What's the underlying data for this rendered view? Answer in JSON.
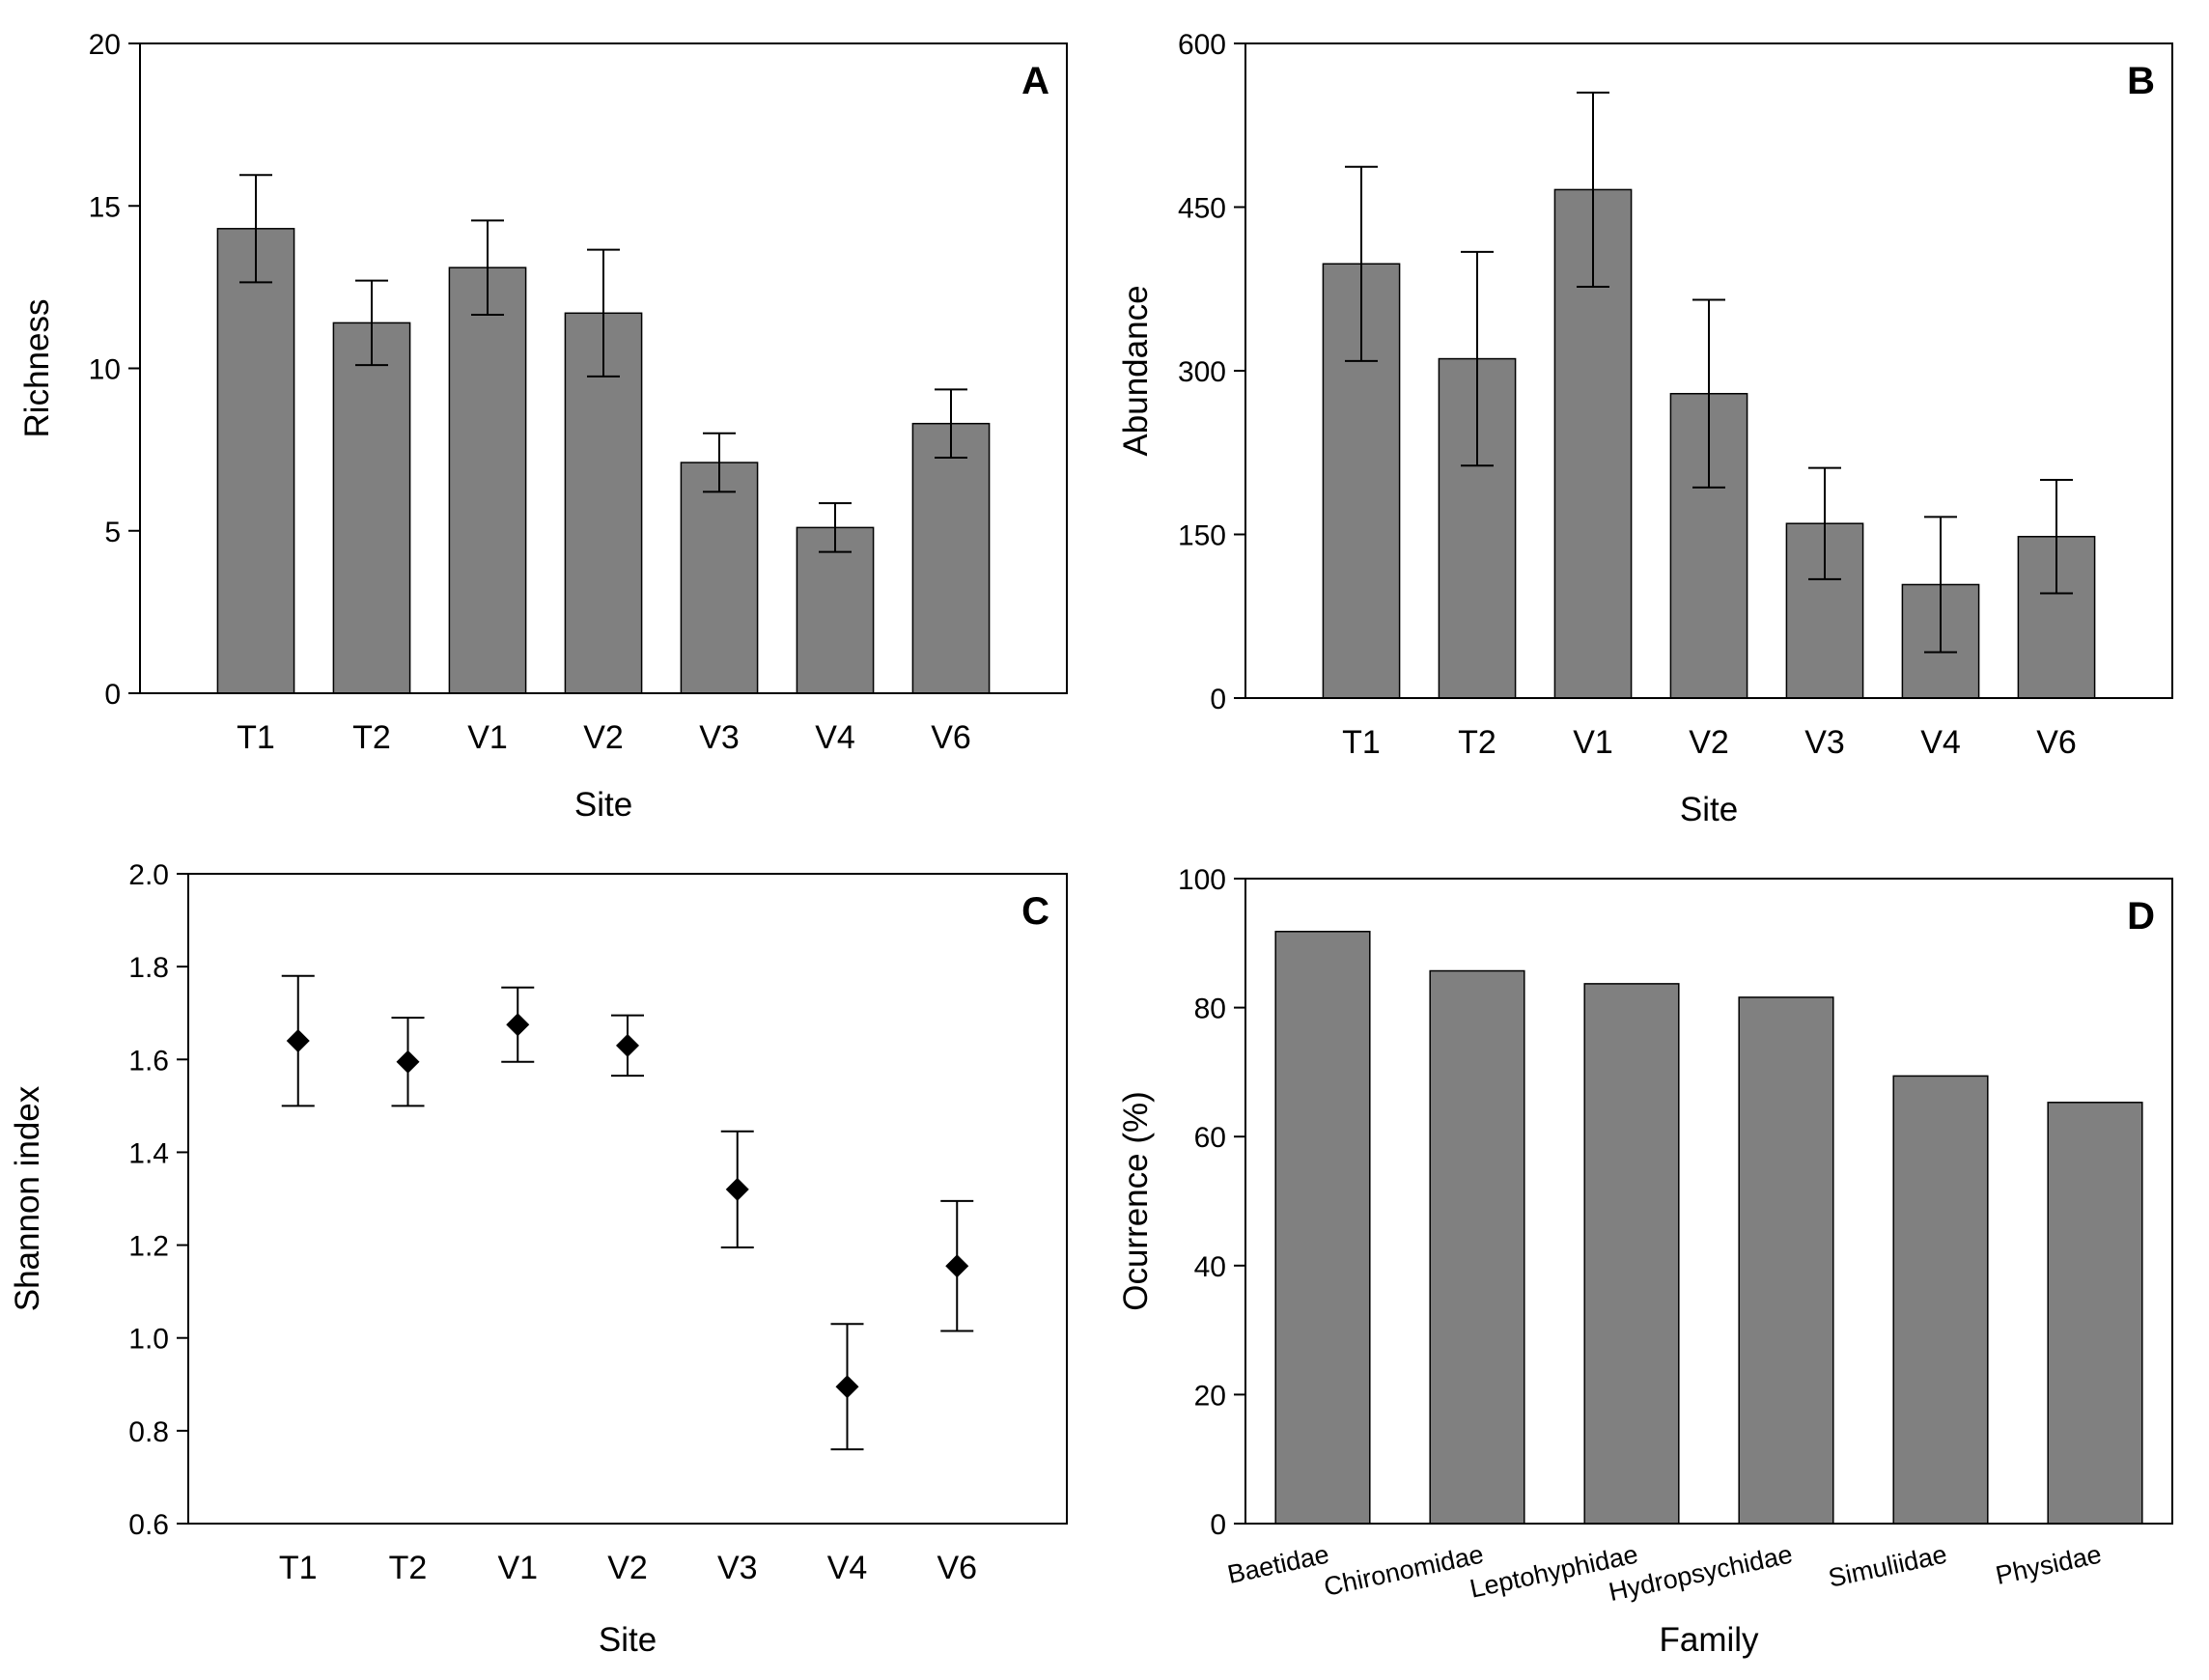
{
  "colors": {
    "bar_fill": "#808080",
    "bar_stroke": "#000000",
    "axis": "#000000",
    "marker": "#000000"
  },
  "chart_data": [
    {
      "panel": "A",
      "type": "bar",
      "categories": [
        "T1",
        "T2",
        "V1",
        "V2",
        "V3",
        "V4",
        "V6"
      ],
      "values": [
        14.3,
        11.4,
        13.1,
        11.7,
        7.1,
        5.1,
        8.3
      ],
      "errors": [
        1.65,
        1.3,
        1.45,
        1.95,
        0.9,
        0.75,
        1.05
      ],
      "xlabel": "Site",
      "ylabel": "Richness",
      "ylim": [
        0,
        20
      ],
      "yticks": [
        "0",
        "5",
        "10",
        "15",
        "20"
      ]
    },
    {
      "panel": "B",
      "type": "bar",
      "categories": [
        "T1",
        "T2",
        "V1",
        "V2",
        "V3",
        "V4",
        "V6"
      ],
      "values": [
        398,
        311,
        466,
        279,
        160,
        104,
        148
      ],
      "errors": [
        89,
        98,
        89,
        86,
        51,
        62,
        52
      ],
      "xlabel": "Site",
      "ylabel": "Abundance",
      "ylim": [
        0,
        600
      ],
      "yticks": [
        "0",
        "150",
        "300",
        "450",
        "600"
      ]
    },
    {
      "panel": "C",
      "type": "scatter",
      "categories": [
        "T1",
        "T2",
        "V1",
        "V2",
        "V3",
        "V4",
        "V6"
      ],
      "values": [
        1.64,
        1.595,
        1.675,
        1.63,
        1.32,
        0.895,
        1.155
      ],
      "errors": [
        0.14,
        0.095,
        0.08,
        0.065,
        0.125,
        0.135,
        0.14
      ],
      "xlabel": "Site",
      "ylabel": "Shannon index",
      "ylim": [
        0.6,
        2.0
      ],
      "yticks": [
        "0.6",
        "0.8",
        "1.0",
        "1.2",
        "1.4",
        "1.6",
        "1.8",
        "2.0"
      ]
    },
    {
      "panel": "D",
      "type": "bar",
      "categories": [
        "Baetidae",
        "Chironomidae",
        "Leptohyphidae",
        "Hydropsychidae",
        "Simuliidae",
        "Physidae"
      ],
      "values": [
        91.8,
        85.7,
        83.7,
        81.6,
        69.4,
        65.3
      ],
      "xlabel": "Family",
      "ylabel": "Ocurrence (%)",
      "ylim": [
        0,
        100
      ],
      "yticks": [
        "0",
        "20",
        "40",
        "60",
        "80",
        "100"
      ]
    }
  ]
}
